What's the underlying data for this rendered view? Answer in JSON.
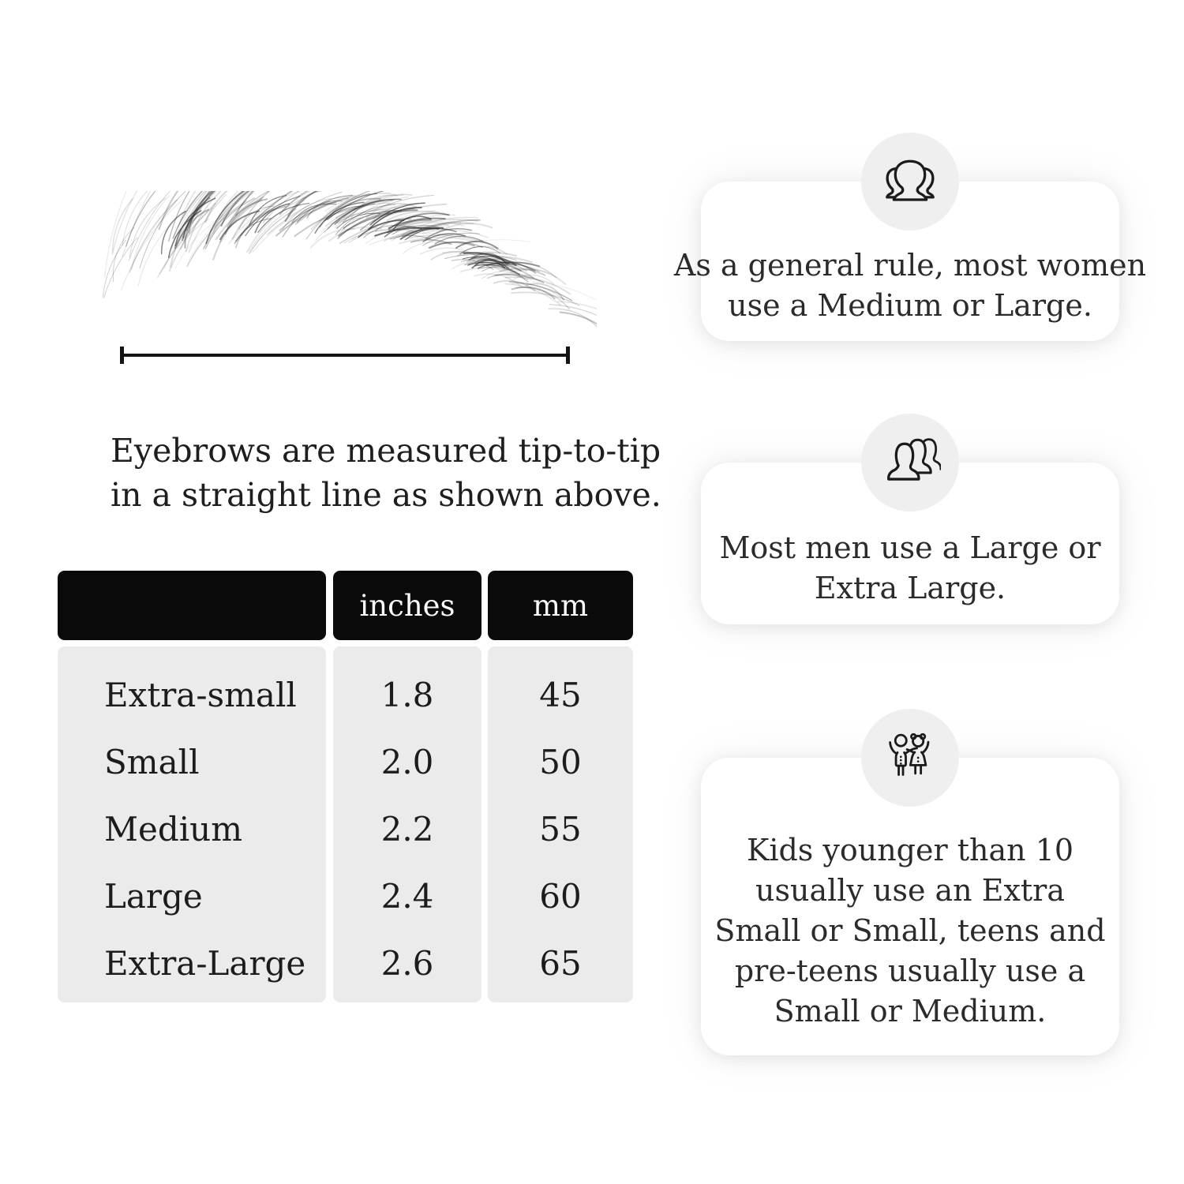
{
  "page": {
    "background": "#ffffff"
  },
  "diagram": {
    "caption_lines": [
      "Eyebrows are measured tip-to-tip",
      "in a straight line as shown above."
    ],
    "line_color": "#141414"
  },
  "size_table": {
    "header": {
      "size_col": "",
      "inches_col": "inches",
      "mm_col": "mm"
    },
    "header_bg": "#0a0a0a",
    "body_bg": "#ebebeb",
    "rows": [
      {
        "label": "Extra-small",
        "inches": "1.8",
        "mm": "45"
      },
      {
        "label": "Small",
        "inches": "2.0",
        "mm": "50"
      },
      {
        "label": "Medium",
        "inches": "2.2",
        "mm": "55"
      },
      {
        "label": "Large",
        "inches": "2.4",
        "mm": "60"
      },
      {
        "label": "Extra-Large",
        "inches": "2.6",
        "mm": "65"
      }
    ]
  },
  "cards": [
    {
      "icon": "women-group-icon",
      "lines": [
        "As a general rule, most women",
        "use a Medium or Large."
      ]
    },
    {
      "icon": "men-group-icon",
      "lines": [
        "Most men use a Large or",
        "Extra Large."
      ]
    },
    {
      "icon": "kids-icon",
      "lines": [
        "Kids younger than 10",
        "usually use an Extra",
        "Small or Small, teens and",
        "pre-teens usually use a",
        "Small or Medium."
      ]
    }
  ]
}
